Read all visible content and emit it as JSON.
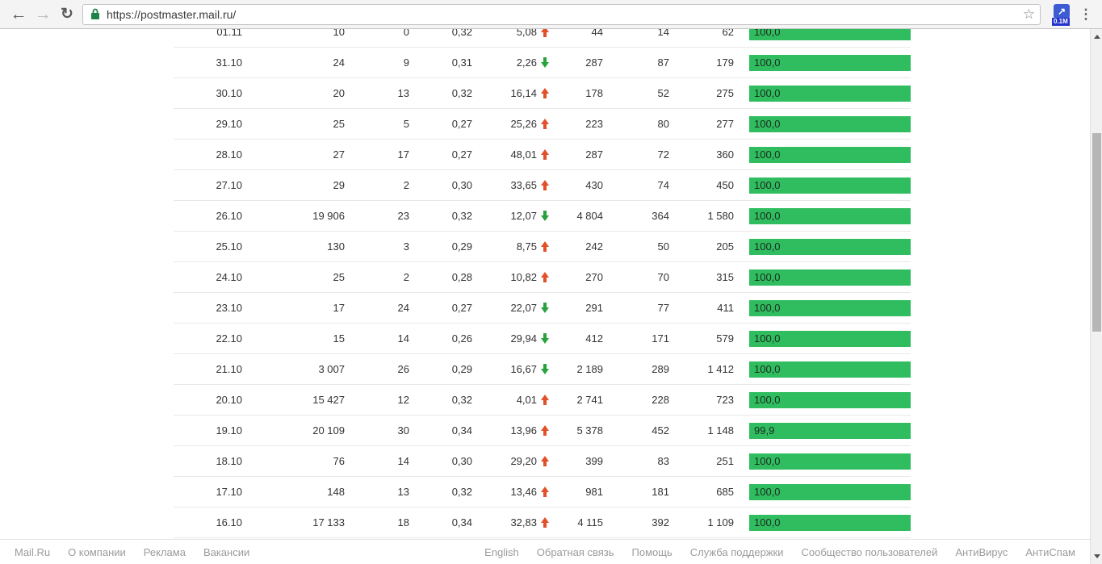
{
  "browser": {
    "url": "https://postmaster.mail.ru/",
    "extension_badge": "0.1M"
  },
  "table": {
    "rows": [
      {
        "date": "01.11",
        "c1": "10",
        "c2": "0",
        "c3": "0,32",
        "delta": "5,08",
        "trend": "up",
        "c4": "44",
        "c5": "14",
        "c6": "62",
        "bar": "100,0",
        "bar_pct": 100
      },
      {
        "date": "31.10",
        "c1": "24",
        "c2": "9",
        "c3": "0,31",
        "delta": "2,26",
        "trend": "down",
        "c4": "287",
        "c5": "87",
        "c6": "179",
        "bar": "100,0",
        "bar_pct": 100
      },
      {
        "date": "30.10",
        "c1": "20",
        "c2": "13",
        "c3": "0,32",
        "delta": "16,14",
        "trend": "up",
        "c4": "178",
        "c5": "52",
        "c6": "275",
        "bar": "100,0",
        "bar_pct": 100
      },
      {
        "date": "29.10",
        "c1": "25",
        "c2": "5",
        "c3": "0,27",
        "delta": "25,26",
        "trend": "up",
        "c4": "223",
        "c5": "80",
        "c6": "277",
        "bar": "100,0",
        "bar_pct": 100
      },
      {
        "date": "28.10",
        "c1": "27",
        "c2": "17",
        "c3": "0,27",
        "delta": "48,01",
        "trend": "up",
        "c4": "287",
        "c5": "72",
        "c6": "360",
        "bar": "100,0",
        "bar_pct": 100
      },
      {
        "date": "27.10",
        "c1": "29",
        "c2": "2",
        "c3": "0,30",
        "delta": "33,65",
        "trend": "up",
        "c4": "430",
        "c5": "74",
        "c6": "450",
        "bar": "100,0",
        "bar_pct": 100
      },
      {
        "date": "26.10",
        "c1": "19 906",
        "c2": "23",
        "c3": "0,32",
        "delta": "12,07",
        "trend": "down",
        "c4": "4 804",
        "c5": "364",
        "c6": "1 580",
        "bar": "100,0",
        "bar_pct": 100
      },
      {
        "date": "25.10",
        "c1": "130",
        "c2": "3",
        "c3": "0,29",
        "delta": "8,75",
        "trend": "up",
        "c4": "242",
        "c5": "50",
        "c6": "205",
        "bar": "100,0",
        "bar_pct": 100
      },
      {
        "date": "24.10",
        "c1": "25",
        "c2": "2",
        "c3": "0,28",
        "delta": "10,82",
        "trend": "up",
        "c4": "270",
        "c5": "70",
        "c6": "315",
        "bar": "100,0",
        "bar_pct": 100
      },
      {
        "date": "23.10",
        "c1": "17",
        "c2": "24",
        "c3": "0,27",
        "delta": "22,07",
        "trend": "down",
        "c4": "291",
        "c5": "77",
        "c6": "411",
        "bar": "100,0",
        "bar_pct": 100
      },
      {
        "date": "22.10",
        "c1": "15",
        "c2": "14",
        "c3": "0,26",
        "delta": "29,94",
        "trend": "down",
        "c4": "412",
        "c5": "171",
        "c6": "579",
        "bar": "100,0",
        "bar_pct": 100
      },
      {
        "date": "21.10",
        "c1": "3 007",
        "c2": "26",
        "c3": "0,29",
        "delta": "16,67",
        "trend": "down",
        "c4": "2 189",
        "c5": "289",
        "c6": "1 412",
        "bar": "100,0",
        "bar_pct": 100
      },
      {
        "date": "20.10",
        "c1": "15 427",
        "c2": "12",
        "c3": "0,32",
        "delta": "4,01",
        "trend": "up",
        "c4": "2 741",
        "c5": "228",
        "c6": "723",
        "bar": "100,0",
        "bar_pct": 100
      },
      {
        "date": "19.10",
        "c1": "20 109",
        "c2": "30",
        "c3": "0,34",
        "delta": "13,96",
        "trend": "up",
        "c4": "5 378",
        "c5": "452",
        "c6": "1 148",
        "bar": "99,9",
        "bar_pct": 99.9
      },
      {
        "date": "18.10",
        "c1": "76",
        "c2": "14",
        "c3": "0,30",
        "delta": "29,20",
        "trend": "up",
        "c4": "399",
        "c5": "83",
        "c6": "251",
        "bar": "100,0",
        "bar_pct": 100
      },
      {
        "date": "17.10",
        "c1": "148",
        "c2": "13",
        "c3": "0,32",
        "delta": "13,46",
        "trend": "up",
        "c4": "981",
        "c5": "181",
        "c6": "685",
        "bar": "100,0",
        "bar_pct": 100
      },
      {
        "date": "16.10",
        "c1": "17 133",
        "c2": "18",
        "c3": "0,34",
        "delta": "32,83",
        "trend": "up",
        "c4": "4 115",
        "c5": "392",
        "c6": "1 109",
        "bar": "100,0",
        "bar_pct": 100
      }
    ]
  },
  "footer": {
    "left": [
      "Mail.Ru",
      "О компании",
      "Реклама",
      "Вакансии"
    ],
    "right": [
      "English",
      "Обратная связь",
      "Помощь",
      "Служба поддержки",
      "Сообщество пользователей",
      "АнтиВирус",
      "АнтиСпам"
    ]
  },
  "colors": {
    "bar_green": "#2fbd5f",
    "trend_up_red": "#e2502a",
    "trend_down_green": "#27a23c"
  }
}
